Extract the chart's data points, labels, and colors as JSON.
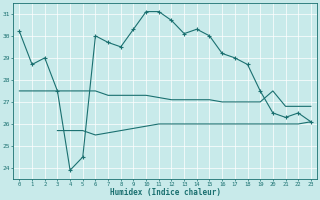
{
  "xlabel": "Humidex (Indice chaleur)",
  "x_ticks": [
    0,
    1,
    2,
    3,
    4,
    5,
    6,
    7,
    8,
    9,
    10,
    11,
    12,
    13,
    14,
    15,
    16,
    17,
    18,
    19,
    20,
    21,
    22,
    23
  ],
  "ylim": [
    23.5,
    31.5
  ],
  "xlim": [
    -0.5,
    23.5
  ],
  "yticks": [
    24,
    25,
    26,
    27,
    28,
    29,
    30,
    31
  ],
  "bg_color": "#c8eaea",
  "grid_color": "#ffffff",
  "line_color": "#1a7070",
  "line1": [
    30.2,
    28.7,
    29.0,
    27.5,
    23.9,
    24.5,
    30.0,
    29.7,
    29.5,
    30.3,
    31.1,
    31.1,
    30.7,
    30.1,
    30.3,
    30.0,
    29.2,
    29.0,
    28.7,
    27.5,
    26.5,
    26.3,
    26.5,
    26.1
  ],
  "line2": [
    27.5,
    27.5,
    27.5,
    27.5,
    27.5,
    27.5,
    27.5,
    27.3,
    27.3,
    27.3,
    27.3,
    27.2,
    27.1,
    27.1,
    27.1,
    27.1,
    27.0,
    27.0,
    27.0,
    27.0,
    27.5,
    26.8,
    26.8,
    26.8
  ],
  "line3": [
    null,
    null,
    null,
    25.7,
    25.7,
    25.7,
    25.5,
    25.6,
    25.7,
    25.8,
    25.9,
    26.0,
    26.0,
    26.0,
    26.0,
    26.0,
    26.0,
    26.0,
    26.0,
    26.0,
    26.0,
    26.0,
    26.0,
    26.1
  ]
}
